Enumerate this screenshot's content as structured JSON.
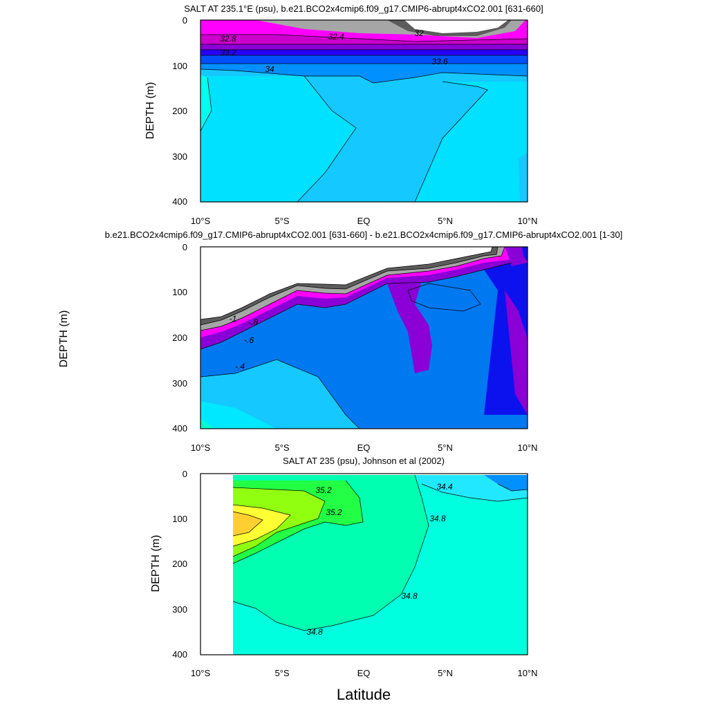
{
  "chart_data": [
    {
      "type": "heatmap",
      "title": "SALT AT 235.1°E (psu), b.e21.BCO2x4cmip6.f09_g17.CMIP6-abrupt4xCO2.001 [631-660]",
      "ylabel": "DEPTH (m)",
      "xlabel": "",
      "xlim": [
        -10,
        10
      ],
      "ylim": [
        0,
        400
      ],
      "x_ticks": [
        "10°S",
        "5°S",
        "EQ",
        "5°N",
        "10°N"
      ],
      "y_ticks": [
        "0",
        "100",
        "200",
        "300",
        "400"
      ],
      "contour_labels": [
        "32",
        "32.4",
        "32.8",
        "33.2",
        "33.6",
        "34"
      ],
      "colors": [
        "#ffffff",
        "#a6a6a6",
        "#5c5c5c",
        "#ff00ff",
        "#cc00cc",
        "#8a00d6",
        "#2800ff",
        "#0050ff",
        "#0090ff",
        "#15c8ff",
        "#00e0ff",
        "#00ffee"
      ]
    },
    {
      "type": "heatmap",
      "title": "b.e21.BCO2x4cmip6.f09_g17.CMIP6-abrupt4xCO2.001 [631-660] - b.e21.BCO2x4cmip6.f09_g17.CMIP6-abrupt4xCO2.001 [1-30]",
      "ylabel": "DEPTH (m)",
      "xlabel": "",
      "xlim": [
        -10,
        10
      ],
      "ylim": [
        0,
        400
      ],
      "x_ticks": [
        "10°S",
        "5°S",
        "EQ",
        "5°N",
        "10°N"
      ],
      "y_ticks": [
        "0",
        "100",
        "200",
        "300",
        "400"
      ],
      "contour_labels": [
        "-1",
        "-.8",
        "-.6",
        "-.4"
      ],
      "colors": [
        "#ffffff",
        "#5c5c5c",
        "#a6a6a6",
        "#ff00ff",
        "#8a00d6",
        "#0c12ee",
        "#0078f0",
        "#15c8ff",
        "#00e8ff",
        "#00ffd0"
      ]
    },
    {
      "type": "heatmap",
      "title": "SALT AT 235 (psu), Johnson et al (2002)",
      "ylabel": "DEPTH (m)",
      "xlabel": "Latitude",
      "xlim": [
        -10,
        10
      ],
      "ylim": [
        0,
        400
      ],
      "x_ticks": [
        "10°S",
        "5°S",
        "EQ",
        "5°N",
        "10°N"
      ],
      "y_ticks": [
        "0",
        "100",
        "200",
        "300",
        "400"
      ],
      "contour_labels": [
        "35.2",
        "35.2",
        "34.8",
        "34.8",
        "34.8",
        "34.4"
      ],
      "colors": [
        "#ffffff",
        "#00ffdf",
        "#00ffb0",
        "#00ff80",
        "#22ff44",
        "#90ff10",
        "#ffff33",
        "#ffd030",
        "#22e8ff",
        "#0090ff"
      ]
    }
  ],
  "figure": {
    "outer_ylabel": "DEPTH (m)"
  }
}
